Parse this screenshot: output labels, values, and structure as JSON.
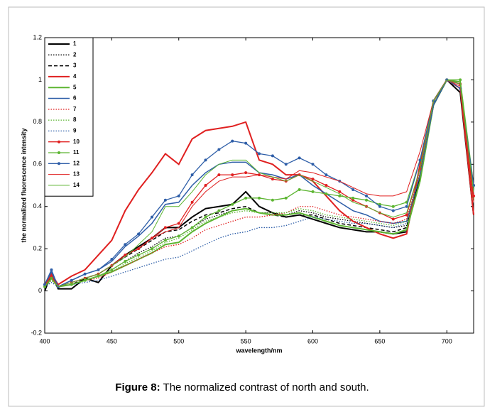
{
  "chart_data": {
    "type": "line",
    "xlabel": "wavelength/nm",
    "ylabel": "the normalized fluorescence intensity",
    "caption_label": "Figure 8:",
    "caption": "The normalized contrast of north and south.",
    "xlim": [
      400,
      720
    ],
    "xticks": [
      400,
      450,
      500,
      550,
      600,
      650,
      700
    ],
    "ylim": [
      -0.2,
      1.2
    ],
    "yticks": [
      -0.2,
      0,
      0.2,
      0.4,
      0.6,
      0.8,
      1,
      1.2
    ],
    "legend": "upper left",
    "x": [
      400,
      405,
      410,
      420,
      430,
      440,
      450,
      460,
      470,
      480,
      490,
      500,
      510,
      520,
      530,
      540,
      550,
      560,
      570,
      580,
      590,
      600,
      610,
      620,
      630,
      640,
      650,
      660,
      670,
      680,
      690,
      700,
      710,
      720
    ],
    "series": [
      {
        "name": "1",
        "color": "#000000",
        "style": "solid",
        "width": 2,
        "marker": false,
        "values": [
          0.0,
          0.08,
          0.01,
          0.01,
          0.06,
          0.04,
          0.12,
          0.17,
          0.21,
          0.25,
          0.3,
          0.3,
          0.35,
          0.39,
          0.4,
          0.41,
          0.47,
          0.4,
          0.37,
          0.35,
          0.36,
          0.34,
          0.32,
          0.3,
          0.29,
          0.28,
          0.28,
          0.27,
          0.28,
          0.55,
          0.88,
          1.0,
          0.94,
          0.36
        ]
      },
      {
        "name": "2",
        "color": "#000000",
        "style": "dotted",
        "width": 1.3,
        "marker": false,
        "values": [
          0.02,
          0.05,
          0.02,
          0.03,
          0.05,
          0.07,
          0.1,
          0.14,
          0.18,
          0.21,
          0.25,
          0.26,
          0.3,
          0.34,
          0.36,
          0.38,
          0.39,
          0.37,
          0.37,
          0.36,
          0.38,
          0.37,
          0.35,
          0.34,
          0.33,
          0.32,
          0.31,
          0.3,
          0.31,
          0.54,
          0.88,
          1.0,
          0.98,
          0.44
        ]
      },
      {
        "name": "3",
        "color": "#000000",
        "style": "dashed",
        "width": 1.5,
        "marker": false,
        "values": [
          0.03,
          0.07,
          0.02,
          0.03,
          0.06,
          0.08,
          0.12,
          0.16,
          0.2,
          0.24,
          0.28,
          0.29,
          0.33,
          0.36,
          0.37,
          0.39,
          0.4,
          0.37,
          0.36,
          0.35,
          0.36,
          0.36,
          0.34,
          0.32,
          0.31,
          0.3,
          0.29,
          0.28,
          0.3,
          0.54,
          0.88,
          1.0,
          0.98,
          0.44
        ]
      },
      {
        "name": "4",
        "color": "#e02020",
        "style": "solid",
        "width": 2,
        "marker": false,
        "values": [
          0.02,
          0.08,
          0.03,
          0.07,
          0.1,
          0.17,
          0.24,
          0.38,
          0.48,
          0.56,
          0.65,
          0.6,
          0.72,
          0.76,
          0.77,
          0.78,
          0.8,
          0.62,
          0.6,
          0.55,
          0.55,
          0.52,
          0.45,
          0.38,
          0.33,
          0.3,
          0.27,
          0.25,
          0.27,
          0.6,
          0.9,
          1.0,
          0.96,
          0.36
        ]
      },
      {
        "name": "5",
        "color": "#5cb531",
        "style": "solid",
        "width": 2,
        "marker": false,
        "values": [
          0.02,
          0.06,
          0.02,
          0.03,
          0.05,
          0.07,
          0.09,
          0.12,
          0.15,
          0.18,
          0.22,
          0.23,
          0.28,
          0.32,
          0.35,
          0.38,
          0.39,
          0.37,
          0.36,
          0.36,
          0.37,
          0.35,
          0.33,
          0.31,
          0.3,
          0.29,
          0.28,
          0.27,
          0.29,
          0.52,
          0.88,
          1.0,
          0.99,
          0.43
        ]
      },
      {
        "name": "6",
        "color": "#2e5ea8",
        "style": "solid",
        "width": 1.5,
        "marker": false,
        "values": [
          0.03,
          0.09,
          0.02,
          0.05,
          0.08,
          0.1,
          0.14,
          0.21,
          0.26,
          0.32,
          0.41,
          0.42,
          0.5,
          0.56,
          0.6,
          0.61,
          0.61,
          0.56,
          0.55,
          0.53,
          0.55,
          0.5,
          0.46,
          0.42,
          0.38,
          0.36,
          0.33,
          0.32,
          0.33,
          0.55,
          0.88,
          1.0,
          0.98,
          0.46
        ]
      },
      {
        "name": "7",
        "color": "#e02020",
        "style": "dotted",
        "width": 1.3,
        "marker": false,
        "values": [
          0.02,
          0.05,
          0.02,
          0.03,
          0.05,
          0.06,
          0.09,
          0.12,
          0.15,
          0.18,
          0.21,
          0.22,
          0.25,
          0.29,
          0.31,
          0.33,
          0.35,
          0.35,
          0.36,
          0.37,
          0.4,
          0.4,
          0.38,
          0.36,
          0.35,
          0.34,
          0.33,
          0.32,
          0.34,
          0.56,
          0.9,
          1.0,
          0.98,
          0.45
        ]
      },
      {
        "name": "8",
        "color": "#5cb531",
        "style": "dotted",
        "width": 1.3,
        "marker": false,
        "values": [
          0.02,
          0.05,
          0.02,
          0.03,
          0.05,
          0.07,
          0.09,
          0.13,
          0.16,
          0.19,
          0.23,
          0.25,
          0.29,
          0.33,
          0.35,
          0.37,
          0.38,
          0.37,
          0.37,
          0.37,
          0.39,
          0.38,
          0.36,
          0.35,
          0.34,
          0.33,
          0.32,
          0.31,
          0.33,
          0.55,
          0.9,
          1.0,
          0.99,
          0.46
        ]
      },
      {
        "name": "9",
        "color": "#2e5ea8",
        "style": "dotted",
        "width": 1.3,
        "marker": false,
        "values": [
          0.02,
          0.04,
          0.02,
          0.03,
          0.04,
          0.05,
          0.07,
          0.09,
          0.11,
          0.13,
          0.15,
          0.16,
          0.19,
          0.22,
          0.25,
          0.27,
          0.28,
          0.3,
          0.3,
          0.31,
          0.33,
          0.35,
          0.34,
          0.33,
          0.32,
          0.32,
          0.31,
          0.3,
          0.32,
          0.55,
          0.88,
          1.0,
          0.98,
          0.44
        ]
      },
      {
        "name": "10",
        "color": "#e02020",
        "style": "solid",
        "width": 1.3,
        "marker": true,
        "values": [
          0.03,
          0.07,
          0.02,
          0.04,
          0.06,
          0.08,
          0.12,
          0.17,
          0.2,
          0.25,
          0.3,
          0.32,
          0.42,
          0.5,
          0.55,
          0.55,
          0.56,
          0.55,
          0.53,
          0.52,
          0.55,
          0.53,
          0.5,
          0.47,
          0.43,
          0.4,
          0.37,
          0.34,
          0.36,
          0.58,
          0.9,
          1.0,
          0.98,
          0.45
        ]
      },
      {
        "name": "11",
        "color": "#5cb531",
        "style": "solid",
        "width": 1.3,
        "marker": true,
        "values": [
          0.02,
          0.06,
          0.02,
          0.03,
          0.05,
          0.07,
          0.1,
          0.14,
          0.17,
          0.2,
          0.24,
          0.26,
          0.3,
          0.35,
          0.38,
          0.41,
          0.44,
          0.44,
          0.43,
          0.44,
          0.48,
          0.47,
          0.46,
          0.45,
          0.44,
          0.43,
          0.41,
          0.4,
          0.42,
          0.62,
          0.9,
          1.0,
          1.0,
          0.5
        ]
      },
      {
        "name": "12",
        "color": "#2e5ea8",
        "style": "solid",
        "width": 1.3,
        "marker": true,
        "values": [
          0.03,
          0.1,
          0.02,
          0.05,
          0.08,
          0.1,
          0.15,
          0.22,
          0.27,
          0.35,
          0.43,
          0.45,
          0.55,
          0.62,
          0.67,
          0.71,
          0.7,
          0.65,
          0.64,
          0.6,
          0.63,
          0.6,
          0.55,
          0.52,
          0.48,
          0.45,
          0.4,
          0.38,
          0.4,
          0.62,
          0.9,
          1.0,
          0.96,
          0.5
        ]
      },
      {
        "name": "13",
        "color": "#e02020",
        "style": "solid",
        "width": 1,
        "marker": false,
        "values": [
          0.02,
          0.06,
          0.02,
          0.04,
          0.06,
          0.08,
          0.12,
          0.17,
          0.2,
          0.25,
          0.28,
          0.3,
          0.4,
          0.47,
          0.52,
          0.54,
          0.54,
          0.55,
          0.54,
          0.53,
          0.57,
          0.56,
          0.54,
          0.52,
          0.49,
          0.46,
          0.45,
          0.45,
          0.47,
          0.66,
          0.9,
          1.0,
          0.97,
          0.42
        ]
      },
      {
        "name": "14",
        "color": "#5cb531",
        "style": "solid",
        "width": 1,
        "marker": false,
        "values": [
          0.02,
          0.06,
          0.02,
          0.04,
          0.06,
          0.08,
          0.12,
          0.16,
          0.22,
          0.28,
          0.4,
          0.4,
          0.47,
          0.55,
          0.6,
          0.62,
          0.62,
          0.56,
          0.54,
          0.52,
          0.55,
          0.52,
          0.49,
          0.46,
          0.42,
          0.4,
          0.37,
          0.35,
          0.37,
          0.58,
          0.9,
          1.0,
          0.98,
          0.47
        ]
      }
    ]
  }
}
